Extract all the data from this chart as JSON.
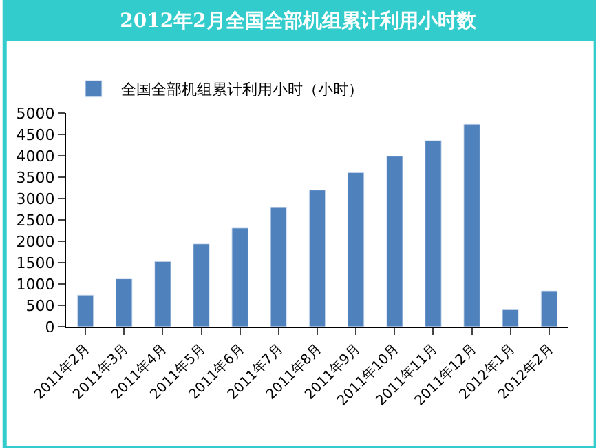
{
  "chart_data": {
    "type": "bar",
    "title": "2012年2月全国全部机组累计利用小时数",
    "categories": [
      "2011年2月",
      "2011年3月",
      "2011年4月",
      "2011年5月",
      "2011年6月",
      "2011年7月",
      "2011年8月",
      "2011年9月",
      "2011年10月",
      "2011年11月",
      "2011年12月",
      "2012年1月",
      "2012年2月"
    ],
    "series": [
      {
        "name": "全国全部机组累计利用小时（小时）",
        "color": "#4f81bd",
        "values": [
          740,
          1120,
          1530,
          1940,
          2310,
          2790,
          3200,
          3610,
          3990,
          4360,
          4740,
          400,
          840
        ]
      }
    ],
    "ylim": [
      0,
      5000
    ],
    "yticks": [
      0,
      500,
      1000,
      1500,
      2000,
      2500,
      3000,
      3500,
      4000,
      4500,
      5000
    ],
    "grid": false,
    "legend": "top left"
  }
}
